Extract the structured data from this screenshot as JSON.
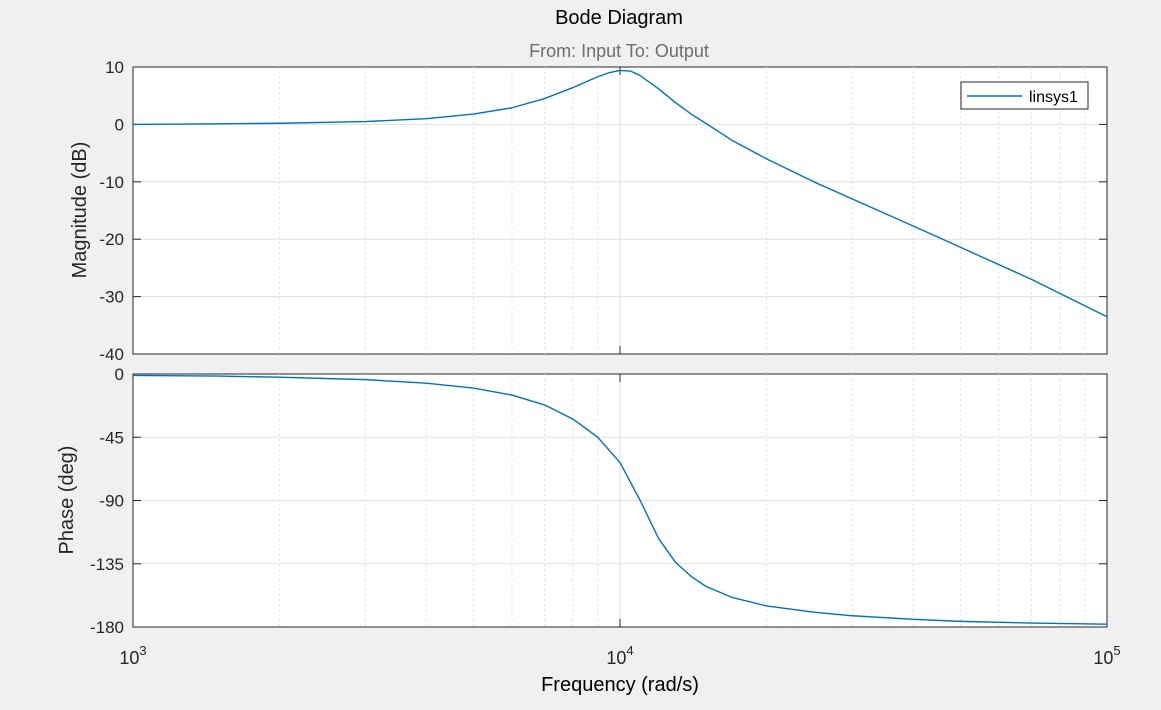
{
  "figure": {
    "title": "Bode Diagram",
    "subtitle": "From: Input  To: Output",
    "xlabel": "Frequency  (rad/s)"
  },
  "legend": {
    "entries": [
      "linsys1"
    ],
    "placement": "top-right"
  },
  "colors": {
    "background": "#f0f0f0",
    "axes_bg": "#ffffff",
    "line": "#0072bd",
    "grid": "#dfdfdf",
    "axis_text": "#262626",
    "subtitle_text": "#6e6e6e"
  },
  "chart_data": [
    {
      "type": "line",
      "panel": "magnitude",
      "ylabel": "Magnitude (dB)",
      "xscale": "log",
      "xlim": [
        1000,
        100000
      ],
      "ylim": [
        -40,
        10
      ],
      "yticks": [
        10,
        0,
        -10,
        -20,
        -30,
        -40
      ],
      "grid": true,
      "series": [
        {
          "name": "linsys1",
          "x": [
            1000,
            1500,
            2000,
            3000,
            4000,
            5000,
            6000,
            7000,
            8000,
            9000,
            9500,
            10000,
            10500,
            11000,
            12000,
            13000,
            14000,
            15000,
            17000,
            20000,
            25000,
            30000,
            40000,
            50000,
            70000,
            100000
          ],
          "y": [
            0.0,
            0.1,
            0.2,
            0.5,
            1.0,
            1.8,
            2.9,
            4.5,
            6.4,
            8.3,
            9.0,
            9.4,
            9.3,
            8.5,
            6.2,
            3.8,
            1.8,
            0.2,
            -2.8,
            -6.0,
            -10.0,
            -13.0,
            -17.7,
            -21.4,
            -27.0,
            -33.5
          ]
        }
      ]
    },
    {
      "type": "line",
      "panel": "phase",
      "ylabel": "Phase (deg)",
      "xscale": "log",
      "xlim": [
        1000,
        100000
      ],
      "ylim": [
        -180,
        0
      ],
      "yticks": [
        0,
        -45,
        -90,
        -135,
        -180
      ],
      "grid": true,
      "series": [
        {
          "name": "linsys1",
          "x": [
            1000,
            1500,
            2000,
            3000,
            4000,
            5000,
            6000,
            7000,
            8000,
            9000,
            10000,
            11000,
            12000,
            13000,
            14000,
            15000,
            17000,
            20000,
            25000,
            30000,
            40000,
            50000,
            70000,
            100000
          ],
          "y": [
            -1.0,
            -1.5,
            -2.3,
            -4.0,
            -6.5,
            -10.0,
            -15.0,
            -22.0,
            -32.0,
            -45.0,
            -63.0,
            -90.0,
            -117.0,
            -134.0,
            -144.0,
            -151.0,
            -159.0,
            -165.0,
            -169.5,
            -172.0,
            -174.5,
            -176.0,
            -177.2,
            -178.0
          ]
        }
      ]
    }
  ],
  "xticks": [
    {
      "base": "10",
      "exp": "3",
      "value": 1000
    },
    {
      "base": "10",
      "exp": "4",
      "value": 10000
    },
    {
      "base": "10",
      "exp": "5",
      "value": 100000
    }
  ]
}
